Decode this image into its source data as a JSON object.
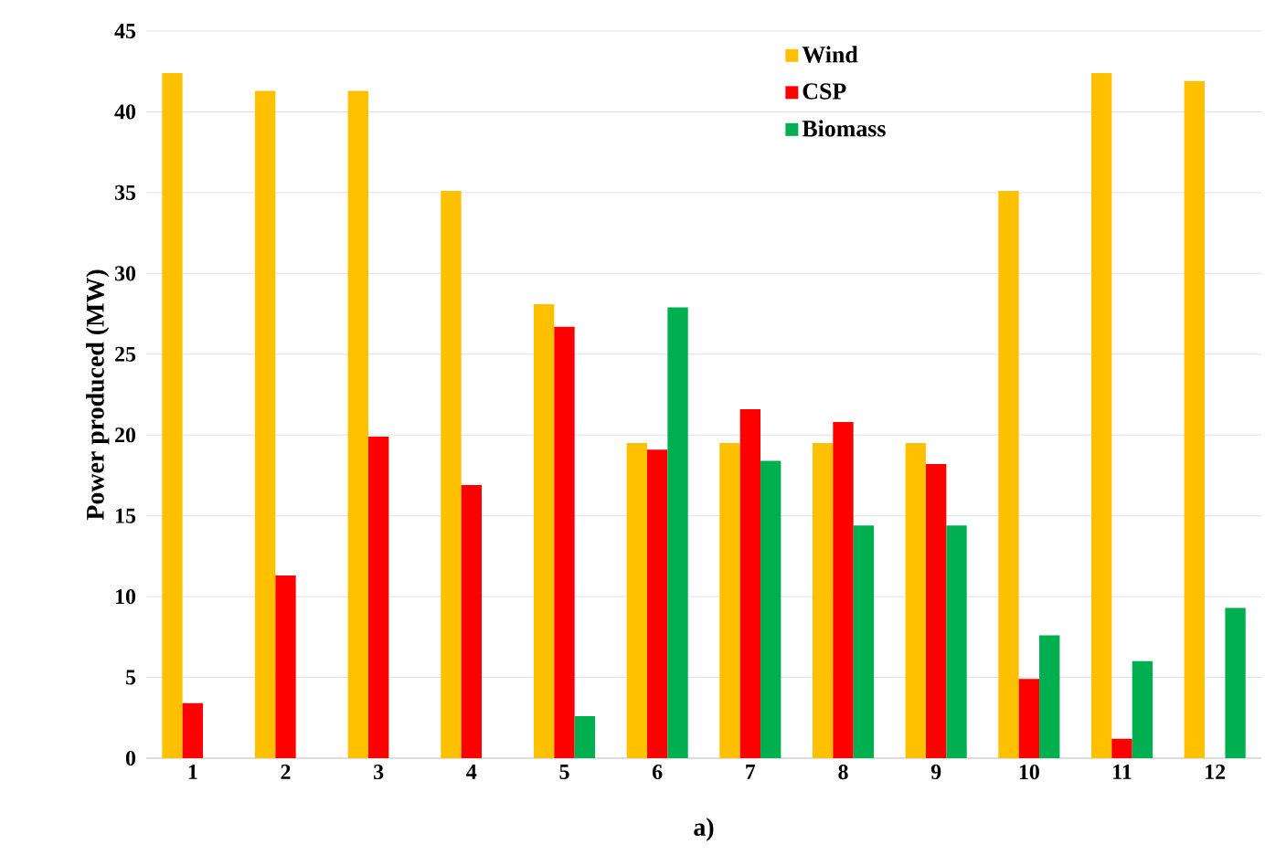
{
  "chart_data": {
    "type": "bar",
    "ylabel": "Power produced (MW)",
    "categories": [
      "1",
      "2",
      "3",
      "4",
      "5",
      "6",
      "7",
      "8",
      "9",
      "10",
      "11",
      "12"
    ],
    "series": [
      {
        "name": "Wind",
        "color": "#ffc000",
        "values": [
          42.4,
          41.3,
          41.3,
          35.1,
          28.1,
          19.5,
          19.5,
          19.5,
          19.5,
          35.1,
          42.4,
          41.9
        ]
      },
      {
        "name": "CSP",
        "color": "#ff0000",
        "values": [
          3.4,
          11.3,
          19.9,
          16.9,
          26.7,
          19.1,
          21.6,
          20.8,
          18.2,
          4.9,
          1.2,
          null
        ]
      },
      {
        "name": "Biomass",
        "color": "#00b050",
        "values": [
          null,
          null,
          null,
          null,
          2.6,
          27.9,
          18.4,
          14.4,
          14.4,
          7.6,
          6.0,
          9.3
        ]
      }
    ],
    "ylim": [
      0,
      45
    ],
    "yticks": [
      0,
      5,
      10,
      15,
      20,
      25,
      30,
      35,
      40,
      45
    ],
    "grid": "y",
    "legend": "top",
    "annotations": [
      "a)"
    ]
  }
}
